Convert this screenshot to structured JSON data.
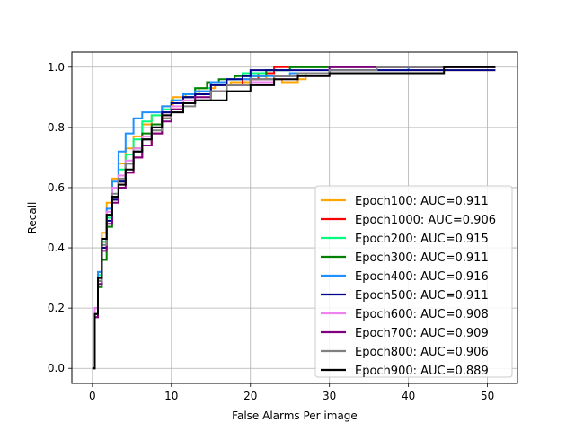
{
  "chart_data": {
    "type": "line",
    "title": "",
    "xlabel": "False Alarms Per image",
    "ylabel": "Recall",
    "xlim": [
      -2.6,
      53.8
    ],
    "ylim": [
      -0.05,
      1.05
    ],
    "x_ticks": [
      0,
      10,
      20,
      30,
      40,
      50
    ],
    "y_ticks": [
      0.0,
      0.2,
      0.4,
      0.6,
      0.8,
      1.0
    ],
    "x_tick_labels": [
      "0",
      "10",
      "20",
      "30",
      "40",
      "50"
    ],
    "y_tick_labels": [
      "0.0",
      "0.2",
      "0.4",
      "0.6",
      "0.8",
      "1.0"
    ],
    "grid": true,
    "legend_position": "lower-right",
    "series": [
      {
        "name": "Epoch100: AUC=0.911",
        "color": "#ffa500",
        "x": [
          0,
          0.3,
          0.7,
          1.2,
          1.8,
          2.5,
          3.3,
          4.2,
          5.2,
          6.3,
          7.5,
          8.8,
          10.2,
          11.8,
          13.5,
          15.5,
          17.5,
          20,
          22,
          24,
          26,
          27,
          30,
          36,
          42,
          45,
          51
        ],
        "y": [
          0,
          0.2,
          0.32,
          0.45,
          0.55,
          0.63,
          0.68,
          0.73,
          0.77,
          0.81,
          0.84,
          0.87,
          0.9,
          0.91,
          0.93,
          0.94,
          0.95,
          0.97,
          0.96,
          0.95,
          0.96,
          0.98,
          0.99,
          0.99,
          0.99,
          0.99,
          0.99
        ]
      },
      {
        "name": "Epoch1000: AUC=0.906",
        "color": "#ff0000",
        "x": [
          0,
          0.3,
          0.7,
          1.2,
          1.8,
          2.5,
          3.3,
          4.2,
          5.2,
          6.3,
          7.5,
          8.8,
          10,
          11.5,
          13,
          15,
          17,
          19,
          21,
          23,
          26,
          30,
          36,
          51
        ],
        "y": [
          0,
          0.18,
          0.3,
          0.42,
          0.5,
          0.56,
          0.61,
          0.65,
          0.7,
          0.74,
          0.78,
          0.83,
          0.86,
          0.9,
          0.91,
          0.92,
          0.94,
          0.96,
          0.98,
          1.0,
          1.0,
          1.0,
          1.0,
          1.0
        ]
      },
      {
        "name": "Epoch200: AUC=0.915",
        "color": "#00ff7f",
        "x": [
          0,
          0.3,
          0.7,
          1.2,
          1.8,
          2.5,
          3.3,
          4.2,
          5.2,
          6.3,
          7.5,
          8.8,
          10,
          11.5,
          13,
          15,
          17,
          19,
          22,
          25,
          30,
          51
        ],
        "y": [
          0,
          0.2,
          0.31,
          0.42,
          0.5,
          0.6,
          0.66,
          0.71,
          0.76,
          0.82,
          0.84,
          0.86,
          0.89,
          0.91,
          0.93,
          0.95,
          0.96,
          0.98,
          0.99,
          1.0,
          1.0,
          1.0
        ]
      },
      {
        "name": "Epoch300: AUC=0.911",
        "color": "#008000",
        "x": [
          0,
          0.3,
          0.7,
          1.2,
          1.8,
          2.5,
          3.3,
          4.2,
          5.2,
          6.3,
          7.5,
          8.8,
          10,
          11.5,
          13,
          14.5,
          16,
          18,
          20,
          22,
          25,
          30,
          51
        ],
        "y": [
          0,
          0.17,
          0.27,
          0.36,
          0.47,
          0.56,
          0.62,
          0.68,
          0.73,
          0.78,
          0.81,
          0.85,
          0.88,
          0.9,
          0.93,
          0.95,
          0.96,
          0.97,
          0.97,
          0.99,
          1.0,
          1.0,
          1.0
        ]
      },
      {
        "name": "Epoch400: AUC=0.916",
        "color": "#1e90ff",
        "x": [
          0,
          0.3,
          0.7,
          1.2,
          1.8,
          2.5,
          3.3,
          4.2,
          5.2,
          6.3,
          7.5,
          8.8,
          10,
          11.5,
          13,
          15,
          17,
          20,
          25,
          30,
          36,
          40,
          51
        ],
        "y": [
          0,
          0.2,
          0.32,
          0.43,
          0.53,
          0.62,
          0.72,
          0.78,
          0.83,
          0.85,
          0.85,
          0.87,
          0.89,
          0.91,
          0.92,
          0.95,
          0.96,
          0.97,
          0.98,
          0.99,
          0.99,
          1.0,
          1.0
        ]
      },
      {
        "name": "Epoch500: AUC=0.911",
        "color": "#00008b",
        "x": [
          0,
          0.3,
          0.7,
          1.2,
          1.8,
          2.5,
          3.3,
          4.2,
          5.2,
          6.3,
          7.5,
          8.8,
          10,
          11.5,
          13,
          15,
          17,
          19,
          20,
          22,
          25,
          30,
          51
        ],
        "y": [
          0,
          0.18,
          0.29,
          0.4,
          0.49,
          0.56,
          0.62,
          0.68,
          0.72,
          0.76,
          0.8,
          0.85,
          0.88,
          0.9,
          0.91,
          0.94,
          0.96,
          0.97,
          0.99,
          0.99,
          0.99,
          0.99,
          0.99
        ]
      },
      {
        "name": "Epoch600: AUC=0.908",
        "color": "#ee82ee",
        "x": [
          0,
          0.3,
          0.7,
          1.2,
          1.8,
          2.5,
          3.3,
          4.2,
          5.2,
          6.3,
          7.5,
          8.8,
          10,
          11.5,
          13,
          15,
          17,
          20,
          23,
          26,
          30,
          36,
          51
        ],
        "y": [
          0,
          0.2,
          0.3,
          0.43,
          0.52,
          0.6,
          0.64,
          0.69,
          0.73,
          0.77,
          0.8,
          0.84,
          0.87,
          0.89,
          0.9,
          0.92,
          0.94,
          0.95,
          0.96,
          0.97,
          1.0,
          1.0,
          1.0
        ]
      },
      {
        "name": "Epoch700: AUC=0.909",
        "color": "#800080",
        "x": [
          0,
          0.3,
          0.7,
          1.2,
          1.8,
          2.5,
          3.3,
          4.2,
          5.2,
          6.3,
          7.5,
          8.8,
          10,
          11.5,
          13,
          15,
          17,
          20,
          23,
          26,
          30,
          36,
          51
        ],
        "y": [
          0,
          0.17,
          0.28,
          0.39,
          0.48,
          0.55,
          0.6,
          0.65,
          0.7,
          0.74,
          0.78,
          0.82,
          0.86,
          0.88,
          0.9,
          0.92,
          0.94,
          0.96,
          0.97,
          0.98,
          1.0,
          1.0,
          1.0
        ]
      },
      {
        "name": "Epoch800: AUC=0.906",
        "color": "#808080",
        "x": [
          0,
          0.3,
          0.7,
          1.2,
          1.8,
          2.5,
          3.3,
          4.2,
          5.2,
          6.3,
          7.5,
          8.8,
          10,
          11.5,
          13,
          15,
          17,
          20,
          23,
          26,
          30,
          36,
          51
        ],
        "y": [
          0,
          0.18,
          0.29,
          0.41,
          0.51,
          0.58,
          0.63,
          0.68,
          0.72,
          0.76,
          0.79,
          0.83,
          0.85,
          0.87,
          0.89,
          0.92,
          0.94,
          0.96,
          0.97,
          0.98,
          0.99,
          1.0,
          1.0
        ]
      },
      {
        "name": "Epoch900: AUC=0.889",
        "color": "#000000",
        "x": [
          0,
          0.3,
          0.7,
          1.2,
          1.8,
          2.5,
          3.3,
          4.2,
          5.2,
          6.3,
          7.5,
          8.8,
          10,
          11.5,
          13,
          15,
          17,
          20,
          23,
          26,
          30,
          36,
          44.5,
          51
        ],
        "y": [
          0,
          0.18,
          0.3,
          0.43,
          0.51,
          0.57,
          0.61,
          0.66,
          0.72,
          0.76,
          0.8,
          0.84,
          0.85,
          0.88,
          0.89,
          0.89,
          0.92,
          0.94,
          0.96,
          0.97,
          0.98,
          0.98,
          1.0,
          1.0
        ]
      }
    ]
  }
}
